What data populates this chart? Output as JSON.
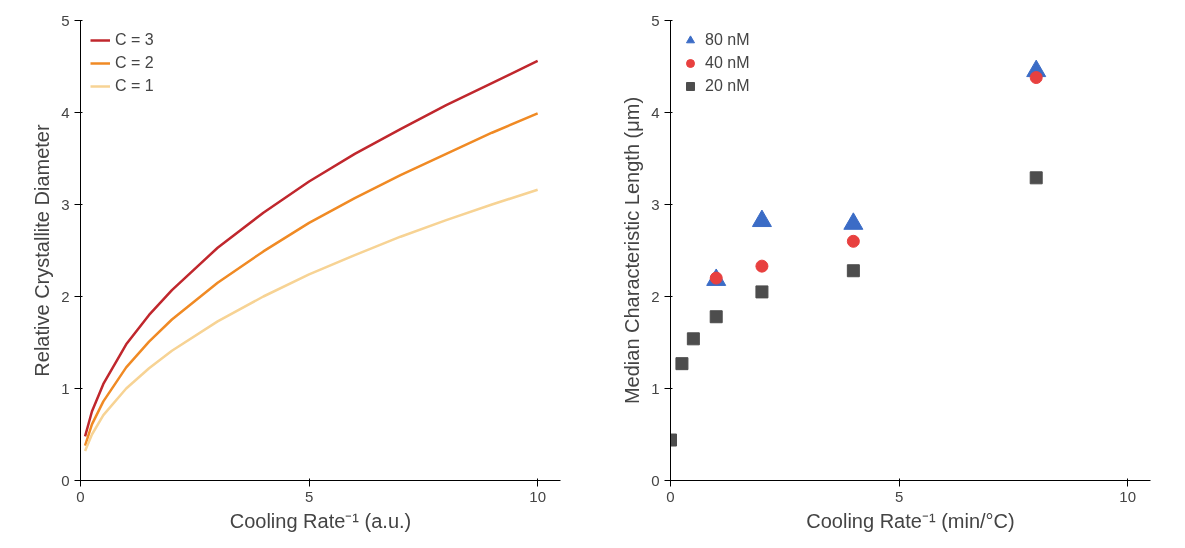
{
  "chart_data": [
    {
      "type": "line",
      "xlabel": "Cooling Rate⁻¹ (a.u.)",
      "ylabel": "Relative Crystallite Diameter",
      "xlim": [
        0,
        10.5
      ],
      "ylim": [
        0,
        5
      ],
      "xticks": [
        0,
        5,
        10
      ],
      "yticks": [
        0,
        1,
        2,
        3,
        4,
        5
      ],
      "grid": false,
      "legend": "top left",
      "marker": "none",
      "line_style": "solid",
      "x": [
        0.1,
        0.25,
        0.5,
        1,
        1.5,
        2,
        3,
        4,
        5,
        6,
        7,
        8,
        9,
        10
      ],
      "series": [
        {
          "name": "C = 3",
          "color": "#c0272d",
          "values": [
            0.48,
            0.75,
            1.05,
            1.48,
            1.8,
            2.07,
            2.53,
            2.91,
            3.25,
            3.55,
            3.82,
            4.08,
            4.32,
            4.56
          ]
        },
        {
          "name": "C = 2",
          "color": "#f08a24",
          "values": [
            0.38,
            0.61,
            0.86,
            1.23,
            1.51,
            1.75,
            2.15,
            2.49,
            2.8,
            3.07,
            3.32,
            3.55,
            3.78,
            3.99
          ]
        },
        {
          "name": "C = 1",
          "color": "#f7d394",
          "values": [
            0.32,
            0.5,
            0.71,
            1.0,
            1.22,
            1.41,
            1.73,
            2.0,
            2.24,
            2.45,
            2.65,
            2.83,
            3.0,
            3.16
          ]
        }
      ]
    },
    {
      "type": "scatter",
      "xlabel": "Cooling Rate⁻¹ (min/°C)",
      "ylabel": "Median Characteristic Length (μm)",
      "xlim": [
        0,
        10.5
      ],
      "ylim": [
        0,
        5
      ],
      "xticks": [
        0,
        5,
        10
      ],
      "yticks": [
        0,
        1,
        2,
        3,
        4,
        5
      ],
      "grid": false,
      "legend": "top left",
      "series": [
        {
          "name": "80 nM",
          "color": "#3b6cc6",
          "marker": "triangle",
          "x": [
            1,
            2,
            4,
            8
          ],
          "values": [
            2.18,
            2.82,
            2.79,
            4.45
          ]
        },
        {
          "name": "40 nM",
          "color": "#e8403f",
          "marker": "circle",
          "x": [
            1,
            2,
            4,
            8
          ],
          "values": [
            2.2,
            2.33,
            2.6,
            4.38
          ]
        },
        {
          "name": "20 nM",
          "color": "#4d4d4d",
          "marker": "square",
          "x": [
            0,
            0.25,
            0.5,
            1,
            2,
            4,
            8
          ],
          "values": [
            0.44,
            1.27,
            1.54,
            1.78,
            2.05,
            2.28,
            3.29
          ]
        }
      ]
    }
  ]
}
